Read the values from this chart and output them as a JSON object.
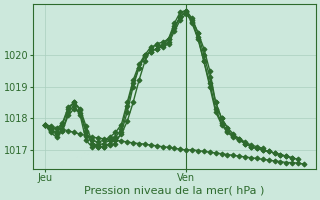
{
  "background_color": "#cce8dc",
  "grid_color": "#aacfbf",
  "line_color": "#2d6a2d",
  "title": "Pression niveau de la mer( hPa )",
  "xlabel_left": "Jeu",
  "xlabel_right": "Ven",
  "ylim": [
    1016.4,
    1021.6
  ],
  "yticks": [
    1017,
    1018,
    1019,
    1020
  ],
  "xlim": [
    0,
    48
  ],
  "jeu_x": 2,
  "ven_x": 26,
  "ven_line_x": 26,
  "series": [
    {
      "x": [
        2,
        3,
        4,
        5,
        6,
        7,
        8,
        9,
        10,
        11,
        12,
        13,
        14,
        15,
        16,
        17,
        18,
        19,
        20,
        21,
        22,
        23,
        24,
        25,
        26,
        27,
        28,
        29,
        30,
        31,
        32,
        33,
        34,
        35,
        36,
        37,
        38,
        39,
        40,
        41,
        42,
        43,
        44,
        45,
        46
      ],
      "y": [
        1017.8,
        1017.75,
        1017.7,
        1017.65,
        1017.6,
        1017.55,
        1017.5,
        1017.45,
        1017.4,
        1017.38,
        1017.35,
        1017.32,
        1017.3,
        1017.28,
        1017.25,
        1017.22,
        1017.2,
        1017.18,
        1017.15,
        1017.13,
        1017.1,
        1017.08,
        1017.05,
        1017.02,
        1017.0,
        1017.0,
        1016.98,
        1016.95,
        1016.93,
        1016.9,
        1016.88,
        1016.85,
        1016.83,
        1016.8,
        1016.78,
        1016.75,
        1016.73,
        1016.7,
        1016.68,
        1016.65,
        1016.63,
        1016.6,
        1016.6,
        1016.58,
        1016.55
      ]
    },
    {
      "x": [
        2,
        3,
        4,
        5,
        6,
        7,
        8,
        9,
        10,
        11,
        12,
        13,
        14,
        15,
        16,
        17,
        18,
        19,
        20,
        21,
        22,
        23,
        24,
        25,
        26,
        27,
        28,
        29,
        30,
        31,
        32,
        33,
        34,
        35,
        36,
        37,
        38,
        39,
        40,
        41,
        42,
        43,
        44,
        45
      ],
      "y": [
        1017.8,
        1017.6,
        1017.5,
        1017.6,
        1018.1,
        1018.3,
        1018.15,
        1017.55,
        1017.2,
        1017.1,
        1017.1,
        1017.2,
        1017.3,
        1017.5,
        1017.9,
        1018.5,
        1019.2,
        1019.8,
        1020.2,
        1020.35,
        1020.4,
        1020.5,
        1021.0,
        1021.35,
        1021.4,
        1021.1,
        1020.7,
        1020.2,
        1019.5,
        1018.5,
        1018.0,
        1017.7,
        1017.5,
        1017.35,
        1017.2,
        1017.1,
        1017.05,
        1017.0,
        1016.95,
        1016.9,
        1016.85,
        1016.8,
        1016.75,
        1016.7
      ]
    },
    {
      "x": [
        2,
        3,
        4,
        5,
        6,
        7,
        8,
        9,
        10,
        11,
        12,
        13,
        14,
        15,
        16,
        17,
        18,
        19,
        20,
        21,
        22,
        23,
        24,
        25,
        26,
        27,
        28,
        29,
        30,
        31,
        32,
        33,
        34,
        35,
        36,
        37,
        38,
        39,
        40,
        41,
        42,
        43,
        44
      ],
      "y": [
        1017.8,
        1017.55,
        1017.4,
        1017.6,
        1018.2,
        1018.4,
        1018.1,
        1017.3,
        1017.1,
        1017.1,
        1017.1,
        1017.15,
        1017.2,
        1017.55,
        1018.2,
        1019.0,
        1019.6,
        1020.0,
        1020.25,
        1020.3,
        1020.3,
        1020.4,
        1020.85,
        1021.2,
        1021.35,
        1021.0,
        1020.5,
        1019.8,
        1019.0,
        1018.2,
        1017.8,
        1017.55,
        1017.4,
        1017.3,
        1017.2,
        1017.1,
        1017.05,
        1017.0,
        1016.95,
        1016.9,
        1016.85,
        1016.8,
        1016.75
      ]
    },
    {
      "x": [
        2,
        3,
        4,
        5,
        6,
        7,
        8,
        9,
        10,
        11,
        12,
        13,
        14,
        15,
        16,
        17,
        18,
        19,
        20,
        21,
        22,
        23,
        24,
        25,
        26,
        27,
        28,
        29,
        30,
        31,
        32,
        33,
        34,
        35,
        36,
        37,
        38,
        39
      ],
      "y": [
        1017.8,
        1017.65,
        1017.55,
        1017.8,
        1018.3,
        1018.5,
        1018.25,
        1017.6,
        1017.2,
        1017.15,
        1017.2,
        1017.3,
        1017.4,
        1017.65,
        1018.4,
        1019.1,
        1019.6,
        1019.95,
        1020.1,
        1020.2,
        1020.25,
        1020.35,
        1020.75,
        1021.1,
        1021.3,
        1021.05,
        1020.55,
        1019.8,
        1019.1,
        1018.3,
        1017.85,
        1017.6,
        1017.45,
        1017.35,
        1017.25,
        1017.15,
        1017.1,
        1017.05
      ]
    },
    {
      "x": [
        2,
        3,
        4,
        5,
        6,
        7,
        8,
        9,
        10,
        11,
        12,
        13,
        14,
        15,
        16,
        17,
        18,
        19,
        20,
        21,
        22,
        23,
        24,
        25,
        26,
        27,
        28,
        29,
        30,
        31,
        32,
        33
      ],
      "y": [
        1017.8,
        1017.7,
        1017.65,
        1017.85,
        1018.35,
        1018.5,
        1018.3,
        1017.75,
        1017.3,
        1017.25,
        1017.3,
        1017.4,
        1017.55,
        1017.8,
        1018.5,
        1019.2,
        1019.7,
        1020.0,
        1020.1,
        1020.2,
        1020.3,
        1020.5,
        1020.9,
        1021.2,
        1021.4,
        1021.15,
        1020.7,
        1020.0,
        1019.3,
        1018.5,
        1018.0,
        1017.7
      ]
    }
  ],
  "marker": "D",
  "marker_size": 2.5,
  "linewidth": 1.0,
  "title_fontsize": 8,
  "tick_fontsize": 7
}
